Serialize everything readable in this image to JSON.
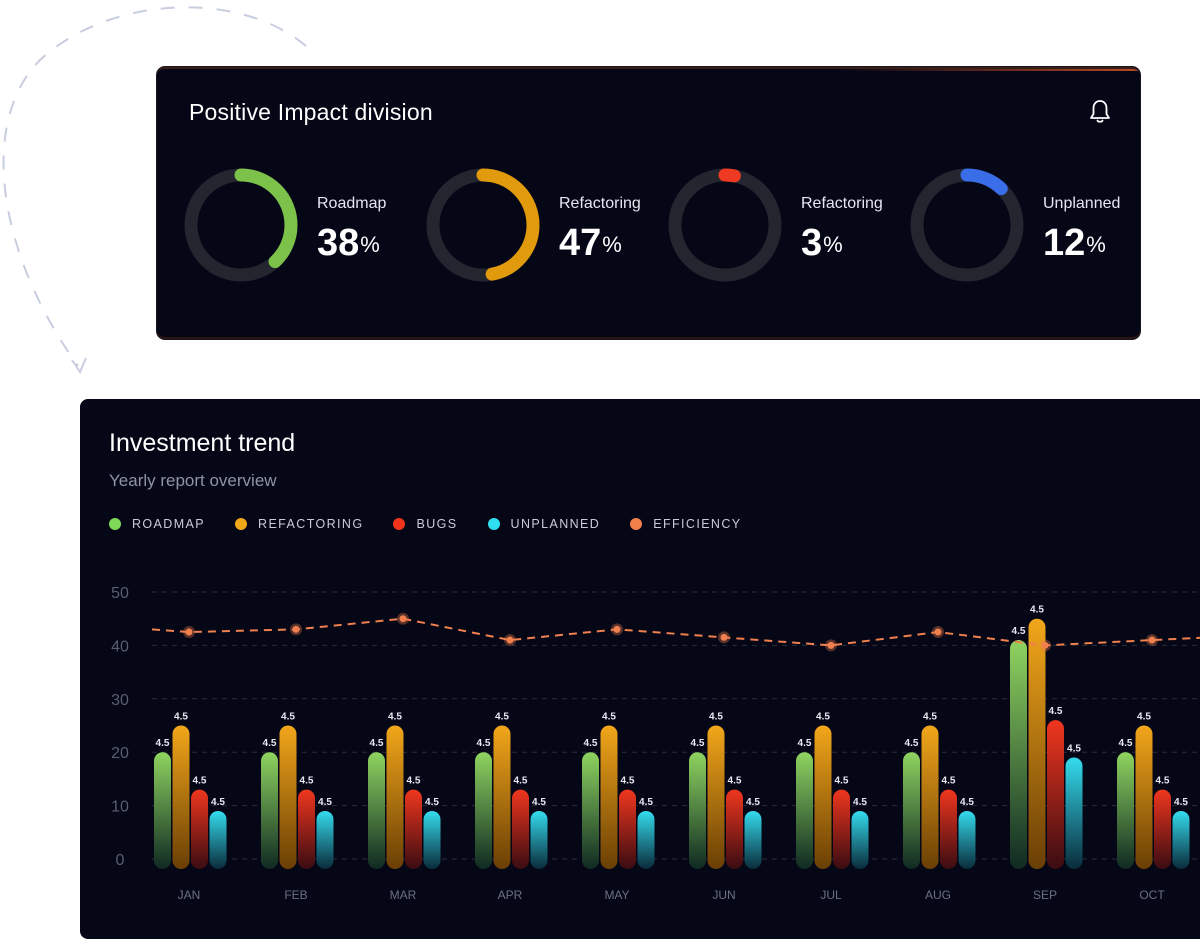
{
  "division": {
    "title": "Positive Impact division",
    "gauges": [
      {
        "label": "Roadmap",
        "value": "38",
        "unit": "%",
        "fraction": 0.38,
        "color": "#7cc24a"
      },
      {
        "label": "Refactoring",
        "value": "47",
        "unit": "%",
        "fraction": 0.47,
        "color": "#e09a0c"
      },
      {
        "label": "Refactoring",
        "value": "3",
        "unit": "%",
        "fraction": 0.03,
        "color": "#ee3a22"
      },
      {
        "label": "Unplanned",
        "value": "12",
        "unit": "%",
        "fraction": 0.12,
        "color": "#3a6ee8"
      }
    ]
  },
  "trend": {
    "title": "Investment trend",
    "subtitle": "Yearly report overview",
    "legend": [
      {
        "label": "ROADMAP",
        "color": "#7ed957"
      },
      {
        "label": "REFACTORING",
        "color": "#f0a818"
      },
      {
        "label": "BUGS",
        "color": "#f0341c"
      },
      {
        "label": "UNPLANNED",
        "color": "#2ee0f0"
      },
      {
        "label": "EFFICIENCY",
        "color": "#f07f4a"
      }
    ]
  },
  "chart_data": {
    "type": "bar",
    "categories": [
      "JAN",
      "FEB",
      "MAR",
      "APR",
      "MAY",
      "JUN",
      "JUL",
      "AUG",
      "SEP",
      "OCT"
    ],
    "series": [
      {
        "name": "ROADMAP",
        "values": [
          20,
          20,
          20,
          20,
          20,
          20,
          20,
          20,
          41,
          20
        ],
        "labels": [
          "4.5",
          "4.5",
          "4.5",
          "4.5",
          "4.5",
          "4.5",
          "4.5",
          "4.5",
          "4.5",
          "4.5"
        ]
      },
      {
        "name": "REFACTORING",
        "values": [
          25,
          25,
          25,
          25,
          25,
          25,
          25,
          25,
          45,
          25
        ],
        "labels": [
          "4.5",
          "4.5",
          "4.5",
          "4.5",
          "4.5",
          "4.5",
          "4.5",
          "4.5",
          "4.5",
          "4.5"
        ]
      },
      {
        "name": "BUGS",
        "values": [
          13,
          13,
          13,
          13,
          13,
          13,
          13,
          13,
          26,
          13
        ],
        "labels": [
          "4.5",
          "4.5",
          "4.5",
          "4.5",
          "4.5",
          "4.5",
          "4.5",
          "4.5",
          "4.5",
          "4.5"
        ]
      },
      {
        "name": "UNPLANNED",
        "values": [
          9,
          9,
          9,
          9,
          9,
          9,
          9,
          9,
          19,
          9
        ],
        "labels": [
          "4.5",
          "4.5",
          "4.5",
          "4.5",
          "4.5",
          "4.5",
          "4.5",
          "4.5",
          "4.5",
          "4.5"
        ]
      },
      {
        "name": "EFFICIENCY",
        "type": "line",
        "values": [
          42.5,
          43,
          45,
          41,
          43,
          41.5,
          40,
          42.5,
          40,
          41
        ]
      }
    ],
    "yticks": [
      "0",
      "10",
      "20",
      "30",
      "40",
      "50"
    ],
    "ylim": [
      0,
      50
    ],
    "xlabel": "",
    "ylabel": "",
    "grid": true,
    "legend_position": "top-left"
  }
}
